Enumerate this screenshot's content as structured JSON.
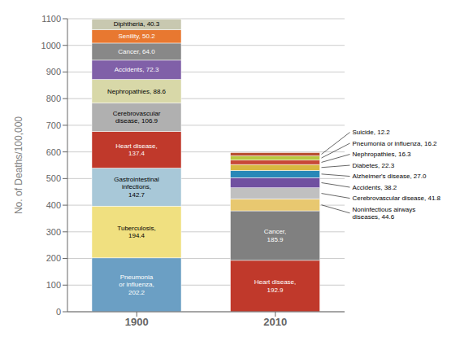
{
  "chart_data": {
    "type": "bar",
    "stacked": true,
    "categories": [
      "1900",
      "2010"
    ],
    "ylabel": "No. of Deaths/100,000",
    "ylim": [
      0,
      1100
    ],
    "yticks": [
      0,
      100,
      200,
      300,
      400,
      500,
      600,
      700,
      800,
      900,
      1000,
      1100
    ],
    "grid": true,
    "series": [
      {
        "values": [
          202.2,
          192.9
        ],
        "colors": [
          "#6b9fc4",
          "#c0392b"
        ],
        "value_labels": [
          "Pneumonia\nor influenza,\n202.2",
          "Heart disease,\n192.9"
        ]
      },
      {
        "values": [
          194.4,
          185.9
        ],
        "colors": [
          "#f0e080",
          "#808080"
        ],
        "value_labels": [
          "Tuberculosis,\n194.4",
          "Cancer,\n185.9"
        ]
      },
      {
        "values": [
          142.7,
          44.6
        ],
        "colors": [
          "#a8c8d8",
          "#e8c870"
        ],
        "value_labels": [
          "Gastrointestinal\ninfections,\n142.7",
          "Noninfectious airways\ndiseases, 44.6"
        ]
      },
      {
        "values": [
          137.4,
          41.8
        ],
        "colors": [
          "#c0392b",
          "#c0c0c0"
        ],
        "value_labels": [
          "Heart disease,\n137.4",
          "Cerebrovascular disease, 41.8"
        ]
      },
      {
        "values": [
          106.9,
          38.2
        ],
        "colors": [
          "#b0b0b0",
          "#7050a0"
        ],
        "value_labels": [
          "Cerebrovascular\ndisease, 106.9",
          "Accidents, 38.2"
        ]
      },
      {
        "values": [
          88.6,
          27.0
        ],
        "colors": [
          "#d8d8a8",
          "#2888b8"
        ],
        "value_labels": [
          "Nephropathies, 88.6",
          "Alzheimer's disease, 27.0"
        ]
      },
      {
        "values": [
          72.3,
          22.3
        ],
        "colors": [
          "#8060a8",
          "#d8b840"
        ],
        "value_labels": [
          "Accidents, 72.3",
          "Diabetes, 22.3"
        ]
      },
      {
        "values": [
          64.0,
          16.3
        ],
        "colors": [
          "#888888",
          "#c84838"
        ],
        "value_labels": [
          "Cancer, 64.0",
          "Nephropathies, 16.3"
        ]
      },
      {
        "values": [
          50.2,
          16.2
        ],
        "colors": [
          "#e87830",
          "#b8c840"
        ],
        "value_labels": [
          "Senility, 50.2",
          "Pneumonia or influenza, 16.2"
        ]
      },
      {
        "values": [
          40.3,
          12.2
        ],
        "colors": [
          "#c8c8b0",
          "#b85030"
        ],
        "value_labels": [
          "Diphtheria, 40.3",
          "Suicide, 12.2"
        ]
      }
    ]
  }
}
